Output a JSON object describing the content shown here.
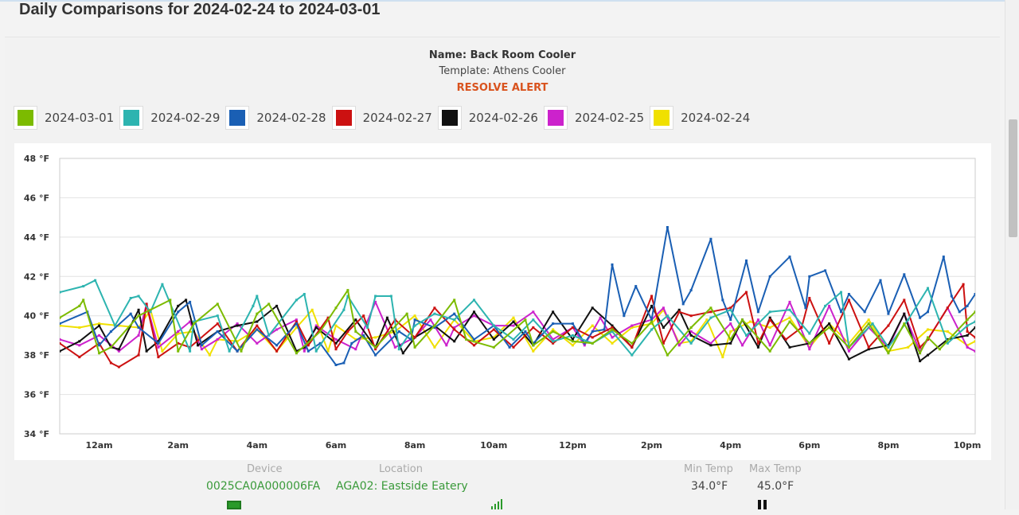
{
  "page": {
    "title": "Daily Comparisons for 2024-02-24 to 2024-03-01"
  },
  "header": {
    "name": "Name: Back Room Cooler",
    "template": "Template: Athens Cooler",
    "alert": "RESOLVE ALERT"
  },
  "footer": {
    "device_label": "Device",
    "device_value": "0025CA0A000006FA",
    "location_label": "Location",
    "location_value": "AGA02: Eastside Eatery",
    "min_label": "Min Temp",
    "min_value": "34.0°F",
    "max_label": "Max Temp",
    "max_value": "45.0°F"
  },
  "colors": {
    "alert": "#d9531e",
    "green_text": "#3a9a3a"
  },
  "chart_data": {
    "type": "line",
    "ylim": [
      34,
      48
    ],
    "yticks": [
      34,
      36,
      38,
      40,
      42,
      44,
      46,
      48
    ],
    "ytick_labels": [
      "34 °F",
      "36 °F",
      "38 °F",
      "40 °F",
      "42 °F",
      "44 °F",
      "46 °F",
      "48 °F"
    ],
    "xlim": [
      -1,
      22.2
    ],
    "xticks": [
      0,
      2,
      4,
      6,
      8,
      10,
      12,
      14,
      16,
      18,
      20,
      22
    ],
    "xtick_labels": [
      "12am",
      "2am",
      "4am",
      "6am",
      "8am",
      "10am",
      "12pm",
      "2pm",
      "4pm",
      "6pm",
      "8pm",
      "10pm"
    ],
    "grid": "horizontal",
    "series": [
      {
        "name": "2024-03-01",
        "color": "#7cbb00",
        "x": [
          -1,
          -0.5,
          -0.4,
          0,
          0.3,
          1,
          1.8,
          2,
          2.4,
          3,
          3.6,
          4,
          4.3,
          5,
          5.6,
          6,
          6.3,
          6.5,
          7,
          7.8,
          8,
          8.5,
          9,
          9.3,
          10,
          10.8,
          11,
          11.5,
          12,
          12.5,
          13,
          13.5,
          14,
          14.4,
          15,
          15.5,
          16,
          16.3,
          17,
          17.5,
          18,
          18.5,
          19,
          19.5,
          20,
          20.4,
          20.8,
          21,
          21.3,
          22,
          22.2
        ],
        "y": [
          39.9,
          40.5,
          40.8,
          38.1,
          38.4,
          40.0,
          40.8,
          38.2,
          39.6,
          40.6,
          38.2,
          40.1,
          40.6,
          38.1,
          39.2,
          40.4,
          41.3,
          39.2,
          38.4,
          40.1,
          38.4,
          39.5,
          40.8,
          38.8,
          38.4,
          39.8,
          38.5,
          39.2,
          38.7,
          38.6,
          39.3,
          38.6,
          39.7,
          38.0,
          39.4,
          40.4,
          38.8,
          39.8,
          38.2,
          39.7,
          38.6,
          39.4,
          38.4,
          39.6,
          38.1,
          39.6,
          38.1,
          38.9,
          38.3,
          39.8,
          40.2
        ]
      },
      {
        "name": "2024-02-29",
        "color": "#2db4b0",
        "x": [
          -1,
          -0.4,
          -0.1,
          0.4,
          0.8,
          1,
          1.3,
          1.6,
          2.3,
          2.4,
          3,
          3.3,
          3.9,
          4,
          4.3,
          5,
          5.2,
          5.5,
          6.2,
          6.3,
          6.8,
          7,
          7.4,
          7.6,
          8,
          8.5,
          9,
          9.5,
          10,
          10.5,
          11,
          11.5,
          12,
          12.5,
          13,
          13.5,
          14,
          14.4,
          15,
          15.5,
          16,
          16.4,
          17,
          17.5,
          18,
          18.4,
          18.8,
          19,
          19.6,
          20,
          20.5,
          21,
          21.5,
          22,
          22.2
        ],
        "y": [
          41.2,
          41.5,
          41.8,
          39.5,
          40.9,
          41.0,
          40.2,
          41.6,
          38.2,
          39.7,
          40.0,
          38.2,
          40.5,
          41.0,
          39.0,
          40.8,
          41.1,
          38.2,
          40.3,
          41.0,
          39.4,
          41.0,
          41.0,
          38.3,
          39.5,
          40.1,
          39.8,
          40.8,
          39.5,
          38.8,
          39.8,
          38.7,
          39.0,
          38.6,
          39.2,
          38.0,
          39.3,
          40.0,
          38.6,
          39.9,
          40.3,
          39.0,
          40.2,
          40.3,
          39.1,
          40.5,
          41.2,
          38.4,
          39.6,
          38.4,
          39.8,
          41.4,
          38.6,
          39.5,
          39.7
        ]
      },
      {
        "name": "2024-02-28",
        "color": "#1a5fb4",
        "x": [
          -1,
          -0.3,
          0,
          0.3,
          0.8,
          1,
          1.5,
          2,
          2.3,
          2.6,
          3,
          3.5,
          4,
          4.5,
          5,
          5.3,
          5.6,
          6,
          6.2,
          6.4,
          6.7,
          7,
          7.6,
          7.9,
          8,
          8.5,
          9,
          9.5,
          10,
          10.4,
          10.8,
          11,
          11.5,
          12,
          12.3,
          12.5,
          12.8,
          13,
          13.3,
          13.6,
          14,
          14.4,
          14.8,
          15,
          15.5,
          15.8,
          16,
          16.4,
          16.7,
          17,
          17.5,
          17.9,
          18,
          18.4,
          18.8,
          19,
          19.4,
          19.8,
          20,
          20.4,
          20.8,
          21,
          21.4,
          21.6,
          21.8,
          22,
          22.2
        ],
        "y": [
          39.6,
          40.2,
          38.5,
          39.2,
          40.1,
          39.4,
          38.6,
          40.2,
          40.7,
          38.5,
          39.2,
          38.2,
          39.3,
          38.5,
          39.6,
          38.2,
          38.6,
          37.5,
          37.6,
          38.6,
          39.0,
          38.0,
          39.2,
          38.8,
          39.8,
          39.4,
          40.1,
          38.8,
          39.5,
          38.4,
          39.2,
          38.6,
          39.6,
          39.6,
          38.6,
          39.2,
          39.3,
          42.6,
          40.0,
          41.5,
          39.8,
          44.5,
          40.6,
          41.3,
          43.9,
          40.8,
          39.8,
          42.8,
          40.2,
          42.0,
          43.0,
          40.4,
          42.0,
          42.3,
          40.2,
          41.1,
          40.2,
          41.8,
          40.1,
          42.1,
          39.9,
          40.2,
          43.0,
          41.0,
          40.2,
          40.5,
          41.1
        ]
      },
      {
        "name": "2024-02-27",
        "color": "#cc1111",
        "x": [
          -1,
          -0.5,
          0,
          0.3,
          0.5,
          1,
          1.2,
          1.5,
          2,
          2.3,
          3,
          3.5,
          4,
          4.5,
          5,
          5.3,
          5.8,
          6,
          6.3,
          6.7,
          7,
          7.5,
          8,
          8.5,
          9,
          9.5,
          10,
          10.5,
          11,
          11.5,
          12,
          12.5,
          13,
          13.5,
          14,
          14.3,
          14.7,
          15,
          15.5,
          16,
          16.4,
          16.7,
          17,
          17.4,
          17.8,
          18,
          18.5,
          19,
          19.5,
          20,
          20.4,
          20.8,
          21,
          21.5,
          21.9,
          22,
          22.2
        ],
        "y": [
          38.6,
          37.9,
          38.6,
          37.6,
          37.4,
          38.0,
          40.6,
          37.9,
          38.6,
          38.4,
          39.6,
          38.2,
          39.5,
          38.2,
          39.7,
          38.5,
          39.9,
          38.3,
          39.2,
          40.0,
          38.3,
          39.8,
          38.9,
          40.4,
          39.3,
          38.5,
          39.3,
          38.4,
          39.4,
          38.6,
          39.4,
          38.9,
          39.4,
          38.4,
          41.0,
          38.6,
          40.2,
          40.0,
          40.2,
          40.4,
          41.2,
          38.6,
          39.8,
          38.8,
          39.4,
          40.9,
          38.6,
          40.8,
          38.4,
          39.5,
          40.8,
          38.4,
          38.8,
          40.4,
          41.6,
          39.2,
          38.9
        ]
      },
      {
        "name": "2024-02-26",
        "color": "#111111",
        "x": [
          -1,
          -0.5,
          0,
          0.3,
          0.5,
          1,
          1.2,
          1.5,
          2,
          2.2,
          2.5,
          3,
          3.5,
          4,
          4.5,
          5,
          5.2,
          5.5,
          6,
          6.5,
          7,
          7.3,
          7.7,
          8,
          8.5,
          9,
          9.5,
          10,
          10.5,
          11,
          11.5,
          12,
          12.5,
          13,
          13.5,
          14,
          14.3,
          14.7,
          15,
          15.5,
          16,
          16.3,
          16.7,
          17,
          17.5,
          18,
          18.5,
          19,
          19.5,
          20,
          20.4,
          20.8,
          21,
          21.5,
          22,
          22.2
        ],
        "y": [
          38.2,
          38.7,
          39.5,
          38.4,
          38.3,
          40.3,
          38.2,
          38.7,
          40.5,
          40.8,
          38.5,
          39.2,
          39.5,
          39.7,
          40.5,
          38.2,
          38.4,
          39.4,
          38.6,
          39.8,
          38.4,
          39.9,
          38.1,
          38.9,
          39.5,
          38.7,
          40.2,
          38.8,
          39.7,
          38.5,
          40.2,
          38.8,
          40.4,
          39.5,
          38.4,
          40.5,
          39.4,
          40.3,
          39.0,
          38.5,
          38.6,
          39.8,
          38.4,
          39.9,
          38.4,
          38.6,
          39.6,
          37.8,
          38.3,
          38.5,
          40.1,
          37.7,
          38.0,
          38.8,
          39.0,
          39.4
        ]
      },
      {
        "name": "2024-02-25",
        "color": "#cc22cc",
        "x": [
          -1,
          -0.5,
          0,
          0.5,
          1,
          1.2,
          1.5,
          2,
          2.3,
          2.6,
          3,
          3.5,
          4,
          4.5,
          5,
          5.2,
          5.5,
          6,
          6.5,
          7,
          7.5,
          8,
          8.4,
          8.8,
          9,
          9.5,
          10,
          10.5,
          11,
          11.5,
          12,
          12.3,
          12.7,
          13,
          13.5,
          14,
          14.3,
          14.7,
          15,
          15.5,
          16,
          16.3,
          16.7,
          17,
          17.5,
          18,
          18.5,
          19,
          19.5,
          20,
          20.4,
          20.8,
          21,
          21.5,
          22,
          22.2
        ],
        "y": [
          38.8,
          38.5,
          39.0,
          38.2,
          39.0,
          40.6,
          38.4,
          39.2,
          39.7,
          38.3,
          38.8,
          39.6,
          38.6,
          39.3,
          39.8,
          38.2,
          39.5,
          38.8,
          38.3,
          40.7,
          38.4,
          38.9,
          39.8,
          38.5,
          39.4,
          40.0,
          39.5,
          39.5,
          40.2,
          38.8,
          39.4,
          38.5,
          39.9,
          38.9,
          39.5,
          39.8,
          40.4,
          38.5,
          39.2,
          38.6,
          39.6,
          38.5,
          39.8,
          38.5,
          40.7,
          38.3,
          40.5,
          38.2,
          39.4,
          38.4,
          40.1,
          38.2,
          38.8,
          40.4,
          38.4,
          38.2
        ]
      },
      {
        "name": "2024-02-24",
        "color": "#f0e000",
        "x": [
          -1,
          -0.5,
          0,
          0.5,
          1,
          1.3,
          1.6,
          2,
          2.4,
          2.8,
          3,
          3.5,
          4,
          4.5,
          5,
          5.4,
          5.8,
          6,
          6.5,
          7,
          7.5,
          8,
          8.5,
          9,
          9.5,
          10,
          10.5,
          11,
          11.5,
          12,
          12.5,
          13,
          13.5,
          14,
          14.3,
          14.7,
          15,
          15.4,
          15.8,
          16,
          16.5,
          17,
          17.5,
          18,
          18.5,
          19,
          19.5,
          20,
          20.5,
          21,
          21.5,
          22,
          22.2
        ],
        "y": [
          39.5,
          39.4,
          39.6,
          39.5,
          39.4,
          40.3,
          38.2,
          39.1,
          39.2,
          38.0,
          38.8,
          38.7,
          39.3,
          38.2,
          39.4,
          40.3,
          38.2,
          39.5,
          38.8,
          38.9,
          39.2,
          40.0,
          38.4,
          39.8,
          38.7,
          38.9,
          39.9,
          38.2,
          39.3,
          38.5,
          39.5,
          38.6,
          39.4,
          39.6,
          40.3,
          38.6,
          38.7,
          39.8,
          37.9,
          39.2,
          39.7,
          39.4,
          39.9,
          38.4,
          39.6,
          38.6,
          39.8,
          38.2,
          38.4,
          39.3,
          39.2,
          38.5,
          38.7
        ]
      }
    ]
  }
}
